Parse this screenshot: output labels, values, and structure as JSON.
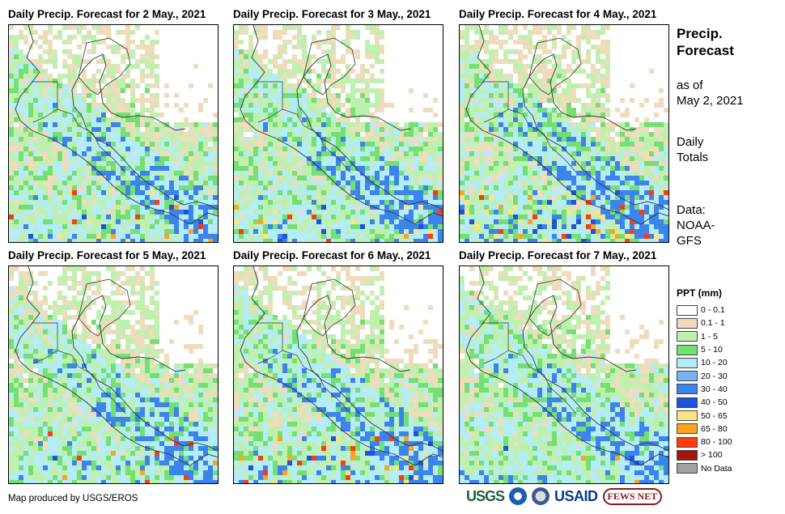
{
  "panels": [
    {
      "title": "Daily Precip. Forecast for 2 May., 2021"
    },
    {
      "title": "Daily Precip. Forecast for 3 May., 2021"
    },
    {
      "title": "Daily Precip. Forecast for 4 May., 2021"
    },
    {
      "title": "Daily Precip. Forecast for 5 May., 2021"
    },
    {
      "title": "Daily Precip. Forecast for 6 May., 2021"
    },
    {
      "title": "Daily Precip. Forecast for 7 May., 2021"
    }
  ],
  "side": {
    "title_line1": "Precip.",
    "title_line2": "Forecast",
    "asof_line1": "as of",
    "asof_line2": "May 2, 2021",
    "totals_line1": "Daily",
    "totals_line2": "Totals",
    "data_line1": "Data:",
    "data_line2": "NOAA-",
    "data_line3": "GFS"
  },
  "legend": {
    "title": "PPT (mm)",
    "items": [
      {
        "label": "0 - 0.1",
        "color": "#ffffff"
      },
      {
        "label": "0.1 - 1",
        "color": "#eedcbc"
      },
      {
        "label": "1 - 5",
        "color": "#c0f0b0"
      },
      {
        "label": "5 - 10",
        "color": "#74e074"
      },
      {
        "label": "10 - 20",
        "color": "#b4ecf8"
      },
      {
        "label": "20 - 30",
        "color": "#74b4f4"
      },
      {
        "label": "30 - 40",
        "color": "#3c84ec"
      },
      {
        "label": "40 - 50",
        "color": "#1c54dc"
      },
      {
        "label": "50 - 65",
        "color": "#fce484"
      },
      {
        "label": "65 - 80",
        "color": "#fca41c"
      },
      {
        "label": "80 - 100",
        "color": "#fc3c0c"
      },
      {
        "label": "> 100",
        "color": "#a4140c"
      },
      {
        "label": "No Data",
        "color": "#a0a0a0"
      }
    ]
  },
  "credit": "Map produced by USGS/EROS",
  "logos": {
    "usgs": "USGS",
    "usaid": "USAID",
    "fews": "FEWS NET"
  }
}
